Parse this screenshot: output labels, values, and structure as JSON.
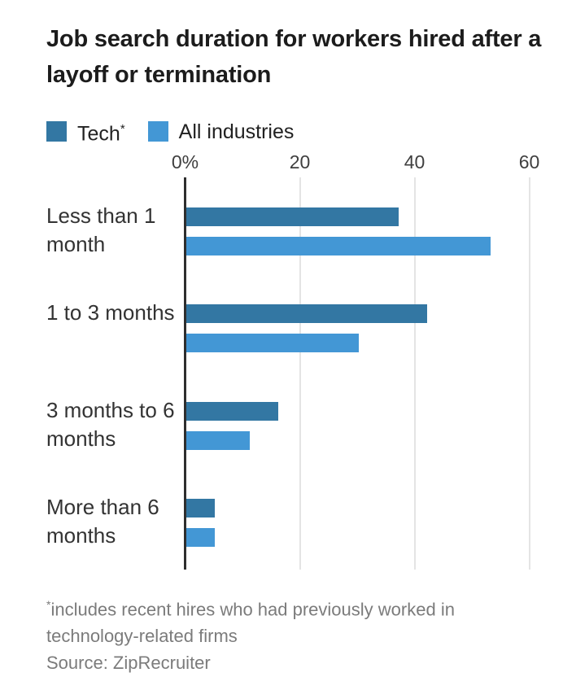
{
  "chart_data": {
    "type": "bar",
    "orientation": "horizontal",
    "title": "Job search duration for workers hired after a layoff or termination",
    "categories": [
      "Less than 1 month",
      "1 to 3 months",
      "3 months to 6 months",
      "More than 6 months"
    ],
    "series": [
      {
        "name": "Tech*",
        "color": "#3377a3",
        "values": [
          37,
          42,
          16,
          5
        ]
      },
      {
        "name": "All industries",
        "color": "#4397d5",
        "values": [
          53,
          30,
          11,
          5
        ]
      }
    ],
    "x_ticks": [
      {
        "value": 0,
        "label": "0%"
      },
      {
        "value": 20,
        "label": "20"
      },
      {
        "value": 40,
        "label": "40"
      },
      {
        "value": 60,
        "label": "60"
      }
    ],
    "xlim": [
      0,
      66
    ],
    "unit": "percent",
    "grid": true,
    "legend_position": "top-left"
  },
  "footer": {
    "note": "*includes recent hires who had previously worked in technology-related firms",
    "source": "Source: ZipRecruiter"
  },
  "colors": {
    "axis": "#2e2e2e",
    "gridline": "#e4e4e4",
    "title_text": "#1c1c1c",
    "category_text": "#333333",
    "tick_text": "#3f3f3f",
    "footnote_text": "#7b7b7b",
    "background": "#ffffff"
  }
}
